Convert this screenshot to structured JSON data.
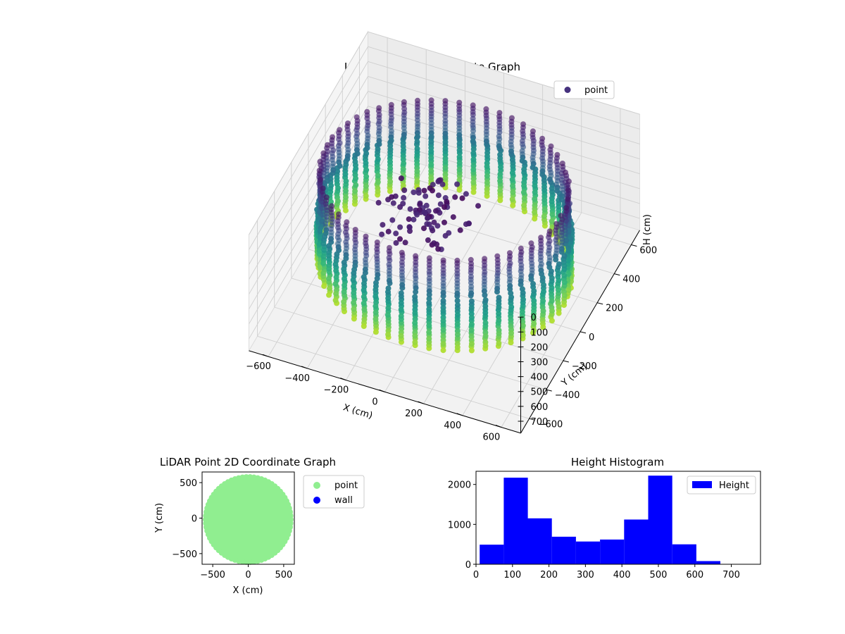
{
  "chart_data": [
    {
      "type": "scatter",
      "projection": "3d",
      "title": "LiDAR Point 3D Coordinate Graph",
      "xlabel": "X (cm)",
      "ylabel": "Y (cm)",
      "zlabel": "H (cm)",
      "xlim": [
        -700,
        700
      ],
      "ylim": [
        -700,
        700
      ],
      "zlim": [
        0,
        780
      ],
      "z_inverted": true,
      "x_ticks": [
        "−600",
        "−400",
        "−200",
        "0",
        "200",
        "400",
        "600"
      ],
      "y_ticks": [
        "−600",
        "−400",
        "−200",
        "0",
        "200",
        "400",
        "600"
      ],
      "z_ticks": [
        "0",
        "100",
        "200",
        "300",
        "400",
        "500",
        "600",
        "700"
      ],
      "colormap": "viridis",
      "legend": {
        "entries": [
          "point"
        ],
        "placement": "top-right"
      },
      "legend_color": "#46327e",
      "shape": "ring of vertical point columns, radius about 600 cm, plus a central cluster near the top",
      "grid": true
    },
    {
      "type": "scatter",
      "title": "LiDAR Point 2D Coordinate Graph",
      "xlabel": "X (cm)",
      "ylabel": "Y (cm)",
      "xlim": [
        -650,
        650
      ],
      "ylim": [
        -650,
        650
      ],
      "x_ticks": [
        -500,
        0,
        500
      ],
      "y_ticks": [
        -500,
        0,
        500
      ],
      "x_tick_labels": [
        "−500",
        "0",
        "500"
      ],
      "y_tick_labels": [
        "−500",
        "0",
        "500"
      ],
      "series": [
        {
          "name": "point",
          "color": "#90ee90",
          "shape": "filled disc",
          "radius": 600
        },
        {
          "name": "wall",
          "color": "#0000ff",
          "points": []
        }
      ],
      "legend": {
        "placement": "outside-right"
      }
    },
    {
      "type": "bar",
      "subtype": "histogram",
      "title": "Height Histogram",
      "bin_edges": [
        10,
        76,
        142,
        208,
        274,
        340,
        406,
        472,
        538,
        604,
        670
      ],
      "values": [
        490,
        2170,
        1150,
        690,
        570,
        620,
        1120,
        2220,
        500,
        80
      ],
      "xlim": [
        0,
        780
      ],
      "ylim": [
        0,
        2330
      ],
      "x_ticks": [
        0,
        100,
        200,
        300,
        400,
        500,
        600,
        700
      ],
      "y_ticks": [
        0,
        1000,
        2000
      ],
      "color": "#0000ff",
      "legend": {
        "entries": [
          "Height"
        ],
        "placement": "top-right"
      }
    }
  ]
}
